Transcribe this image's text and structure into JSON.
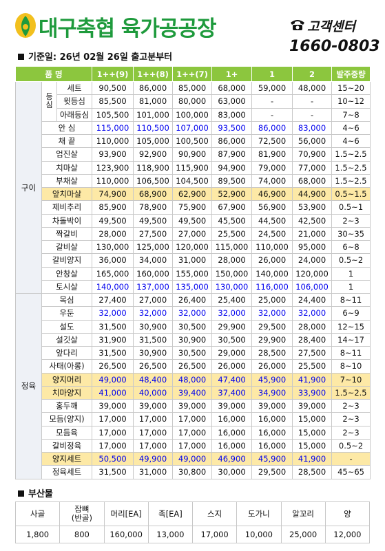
{
  "header": {
    "title": "대구축협 육가공공장",
    "service_label": "고객센터",
    "phone": "1660-0803"
  },
  "base_date": "기준일: 26년 02월 26일 출고분부터",
  "price_table": {
    "columns": [
      "품 명",
      "1++(9)",
      "1++(8)",
      "1++(7)",
      "1+",
      "1",
      "2",
      "발주중량"
    ],
    "groups": [
      {
        "name": "구이",
        "items": [
          {
            "name": "등심",
            "rows": [
              {
                "name": "세트",
                "prices": [
                  "90,500",
                  "86,000",
                  "85,000",
                  "68,000",
                  "59,000",
                  "48,000"
                ],
                "weight": "15~20"
              },
              {
                "name": "윗등심",
                "prices": [
                  "85,500",
                  "81,000",
                  "80,000",
                  "63,000",
                  "-",
                  "-"
                ],
                "weight": "10~12"
              },
              {
                "name": "아래등심",
                "prices": [
                  "105,500",
                  "101,000",
                  "100,000",
                  "83,000",
                  "-",
                  "-"
                ],
                "weight": "7~8"
              }
            ]
          },
          {
            "name": "안 심",
            "prices": [
              "115,000",
              "110,500",
              "107,000",
              "93,500",
              "86,000",
              "83,000"
            ],
            "weight": "4~6",
            "price_color": "#0000ee"
          },
          {
            "name": "채 끝",
            "prices": [
              "110,000",
              "105,000",
              "100,500",
              "86,000",
              "72,500",
              "56,000"
            ],
            "weight": "4~6"
          },
          {
            "name": "업진살",
            "prices": [
              "93,900",
              "92,900",
              "90,900",
              "87,900",
              "81,900",
              "70,900"
            ],
            "weight": "1.5~2.5"
          },
          {
            "name": "치마살",
            "prices": [
              "123,900",
              "118,900",
              "115,900",
              "94,900",
              "79,000",
              "77,000"
            ],
            "weight": "1.5~2.5"
          },
          {
            "name": "부채살",
            "prices": [
              "110,000",
              "106,500",
              "104,500",
              "89,500",
              "74,000",
              "68,000"
            ],
            "weight": "1.5~2.5"
          },
          {
            "name": "앞치마살",
            "prices": [
              "74,900",
              "68,900",
              "62,900",
              "52,900",
              "46,900",
              "44,900"
            ],
            "weight": "0.5~1.5",
            "background": "#fde9a6"
          },
          {
            "name": "제비추리",
            "prices": [
              "85,900",
              "78,900",
              "75,900",
              "67,900",
              "56,900",
              "53,900"
            ],
            "weight": "0.5~1"
          },
          {
            "name": "차돌박이",
            "prices": [
              "49,500",
              "49,500",
              "49,500",
              "45,500",
              "44,500",
              "42,500"
            ],
            "weight": "2~3"
          },
          {
            "name": "짝갈비",
            "prices": [
              "28,000",
              "27,500",
              "27,000",
              "25,500",
              "24,500",
              "21,000"
            ],
            "weight": "30~35"
          },
          {
            "name": "갈비살",
            "prices": [
              "130,000",
              "125,000",
              "120,000",
              "115,000",
              "110,000",
              "95,000"
            ],
            "weight": "6~8"
          },
          {
            "name": "갈비양지",
            "prices": [
              "36,000",
              "34,000",
              "31,000",
              "28,000",
              "26,000",
              "24,000"
            ],
            "weight": "0.5~2"
          },
          {
            "name": "안창살",
            "prices": [
              "165,000",
              "160,000",
              "155,000",
              "150,000",
              "140,000",
              "120,000"
            ],
            "weight": "1"
          },
          {
            "name": "토시살",
            "prices": [
              "140,000",
              "137,000",
              "135,000",
              "130,000",
              "116,000",
              "106,000"
            ],
            "weight": "1",
            "price_color": "#0000ee"
          }
        ]
      },
      {
        "name": "정육",
        "items": [
          {
            "name": "목심",
            "prices": [
              "27,400",
              "27,000",
              "26,400",
              "25,400",
              "25,000",
              "24,400"
            ],
            "weight": "8~11"
          },
          {
            "name": "우둔",
            "prices": [
              "32,000",
              "32,000",
              "32,000",
              "32,000",
              "32,000",
              "32,000"
            ],
            "weight": "6~9",
            "price_color": "#0000ee"
          },
          {
            "name": "설도",
            "prices": [
              "31,500",
              "30,900",
              "30,500",
              "29,900",
              "29,500",
              "28,000"
            ],
            "weight": "12~15"
          },
          {
            "name": "설깃살",
            "prices": [
              "31,900",
              "31,500",
              "30,900",
              "30,500",
              "29,900",
              "28,400"
            ],
            "weight": "14~17"
          },
          {
            "name": "앞다리",
            "prices": [
              "31,500",
              "30,900",
              "30,500",
              "29,000",
              "28,500",
              "27,500"
            ],
            "weight": "8~11"
          },
          {
            "name": "사태(아롱)",
            "prices": [
              "26,500",
              "26,500",
              "26,500",
              "26,000",
              "26,000",
              "25,500"
            ],
            "weight": "8~10"
          },
          {
            "name": "양지머리",
            "prices": [
              "49,000",
              "48,400",
              "48,000",
              "47,400",
              "45,900",
              "41,900"
            ],
            "weight": "7~10",
            "background": "#fde9a6",
            "price_color": "#0000ee"
          },
          {
            "name": "치마양지",
            "prices": [
              "41,000",
              "40,000",
              "39,400",
              "37,400",
              "34,900",
              "33,900"
            ],
            "weight": "1.5~2.5",
            "background": "#fde9a6",
            "price_color": "#0000ee"
          },
          {
            "name": "홍두깨",
            "prices": [
              "39,000",
              "39,000",
              "39,000",
              "39,000",
              "39,000",
              "39,000"
            ],
            "weight": "2~3"
          },
          {
            "name": "모듬(양지)",
            "prices": [
              "17,000",
              "17,000",
              "17,000",
              "16,000",
              "16,000",
              "15,000"
            ],
            "weight": "2~3"
          },
          {
            "name": "모듬육",
            "prices": [
              "17,000",
              "17,000",
              "17,000",
              "16,000",
              "16,000",
              "15,000"
            ],
            "weight": "2~3"
          },
          {
            "name": "갈비정육",
            "prices": [
              "17,000",
              "17,000",
              "17,000",
              "16,000",
              "16,000",
              "15,000"
            ],
            "weight": "0.5~2"
          },
          {
            "name": "양지세트",
            "prices": [
              "50,500",
              "49,900",
              "49,000",
              "46,900",
              "45,900",
              "41,900"
            ],
            "weight": "-",
            "background": "#fde9a6",
            "price_color": "#0000ee"
          },
          {
            "name": "정육세트",
            "prices": [
              "31,500",
              "31,000",
              "30,800",
              "30,000",
              "29,500",
              "28,500"
            ],
            "weight": "45~65"
          }
        ]
      }
    ]
  },
  "byproducts": {
    "title": "부산물",
    "columns": [
      "사골",
      "잡뼈\n(반골)",
      "머리[EA]",
      "족[EA]",
      "스지",
      "도가니",
      "알꼬리",
      "양"
    ],
    "values": [
      "1,800",
      "800",
      "160,000",
      "13,000",
      "17,000",
      "10,000",
      "25,000",
      "12,000"
    ]
  }
}
